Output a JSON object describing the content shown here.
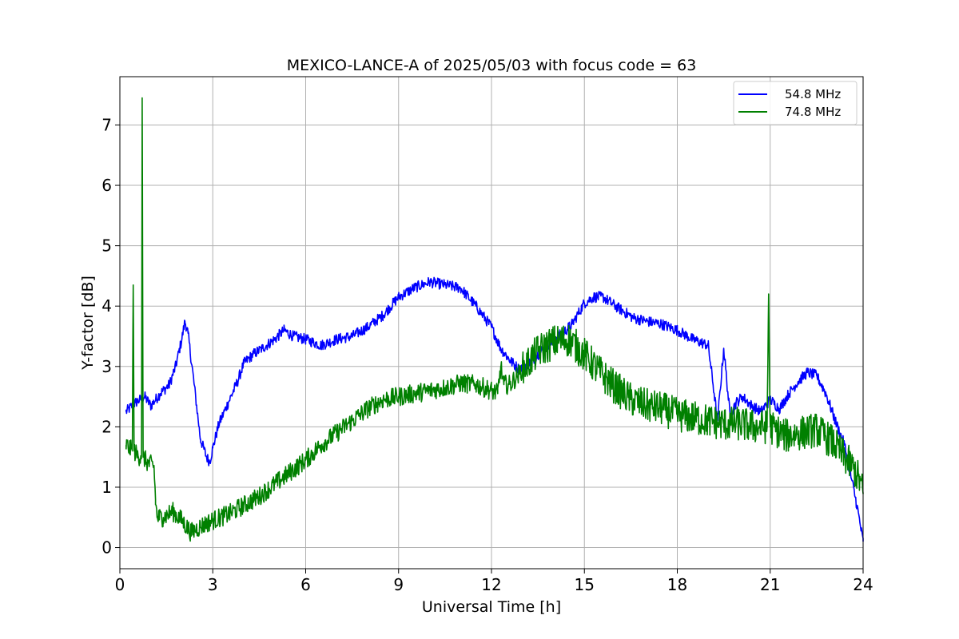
{
  "chart_data": {
    "type": "line",
    "title": "MEXICO-LANCE-A of 2025/05/03 with focus code = 63",
    "xlabel": "Universal Time [h]",
    "ylabel": "Y-factor [dB]",
    "xlim": [
      0,
      24
    ],
    "ylim": [
      -0.35,
      7.8
    ],
    "xticks": [
      0,
      3,
      6,
      9,
      12,
      15,
      18,
      21,
      24
    ],
    "yticks": [
      0,
      1,
      2,
      3,
      4,
      5,
      6,
      7
    ],
    "grid": true,
    "legend": "top-right",
    "series": [
      {
        "name": "54.8 MHz",
        "color": "#0000ff",
        "x": [
          0.2,
          0.5,
          0.8,
          1.0,
          1.3,
          1.6,
          1.8,
          2.0,
          2.1,
          2.2,
          2.4,
          2.6,
          2.8,
          2.9,
          3.0,
          3.2,
          3.5,
          3.8,
          4.0,
          4.3,
          4.6,
          5.0,
          5.3,
          5.6,
          6.0,
          6.5,
          7.0,
          7.5,
          8.0,
          8.5,
          9.0,
          9.5,
          10.0,
          10.5,
          11.0,
          11.5,
          12.0,
          12.3,
          12.6,
          12.9,
          13.2,
          13.6,
          14.0,
          14.3,
          14.6,
          15.0,
          15.3,
          15.6,
          16.0,
          16.3,
          16.6,
          17.0,
          17.5,
          18.0,
          18.5,
          19.0,
          19.3,
          19.5,
          19.7,
          19.9,
          20.1,
          20.4,
          20.7,
          21.0,
          21.3,
          21.6,
          21.9,
          22.2,
          22.5,
          22.8,
          23.1,
          23.4,
          23.6,
          23.8,
          23.9,
          24.0
        ],
        "y": [
          2.25,
          2.4,
          2.5,
          2.35,
          2.55,
          2.7,
          3.0,
          3.45,
          3.75,
          3.55,
          2.7,
          1.8,
          1.5,
          1.42,
          1.65,
          2.05,
          2.4,
          2.75,
          3.05,
          3.2,
          3.3,
          3.45,
          3.6,
          3.5,
          3.45,
          3.35,
          3.45,
          3.5,
          3.65,
          3.85,
          4.15,
          4.3,
          4.4,
          4.35,
          4.3,
          4.0,
          3.65,
          3.3,
          3.1,
          2.95,
          3.05,
          3.25,
          3.45,
          3.55,
          3.7,
          4.05,
          4.15,
          4.15,
          4.0,
          3.9,
          3.8,
          3.75,
          3.7,
          3.6,
          3.45,
          3.35,
          2.1,
          3.3,
          2.2,
          2.4,
          2.5,
          2.35,
          2.25,
          2.45,
          2.3,
          2.55,
          2.75,
          2.9,
          2.85,
          2.55,
          2.1,
          1.7,
          1.2,
          0.7,
          0.4,
          0.1
        ]
      },
      {
        "name": "74.8 MHz",
        "color": "#008000",
        "x": [
          0.2,
          0.4,
          0.43,
          0.46,
          0.6,
          0.7,
          0.72,
          0.75,
          0.9,
          1.1,
          1.15,
          1.2,
          1.4,
          1.7,
          2.0,
          2.3,
          2.6,
          3.0,
          3.5,
          4.0,
          4.5,
          5.0,
          5.5,
          6.0,
          6.5,
          7.0,
          7.5,
          8.0,
          8.5,
          9.0,
          9.5,
          10.0,
          10.5,
          11.0,
          11.5,
          12.0,
          12.2,
          12.3,
          12.4,
          12.6,
          13.0,
          13.5,
          14.0,
          14.5,
          15.0,
          15.5,
          16.0,
          16.5,
          17.0,
          17.5,
          18.0,
          18.5,
          19.0,
          19.5,
          20.0,
          20.5,
          20.9,
          20.95,
          21.0,
          21.5,
          22.0,
          22.5,
          23.0,
          23.4,
          23.7,
          23.9,
          24.0
        ],
        "y": [
          1.7,
          1.6,
          4.35,
          1.6,
          1.5,
          1.55,
          7.45,
          1.5,
          1.4,
          1.35,
          0.8,
          0.5,
          0.5,
          0.6,
          0.45,
          0.25,
          0.35,
          0.45,
          0.55,
          0.7,
          0.85,
          1.05,
          1.25,
          1.45,
          1.7,
          1.9,
          2.1,
          2.3,
          2.45,
          2.5,
          2.55,
          2.6,
          2.65,
          2.72,
          2.7,
          2.6,
          2.55,
          3.0,
          2.7,
          2.7,
          2.95,
          3.25,
          3.4,
          3.45,
          3.2,
          2.9,
          2.65,
          2.45,
          2.35,
          2.3,
          2.2,
          2.15,
          2.1,
          2.05,
          2.05,
          2.0,
          2.0,
          4.2,
          2.0,
          1.85,
          1.9,
          1.95,
          1.75,
          1.5,
          1.3,
          1.1,
          0.9
        ]
      }
    ]
  }
}
